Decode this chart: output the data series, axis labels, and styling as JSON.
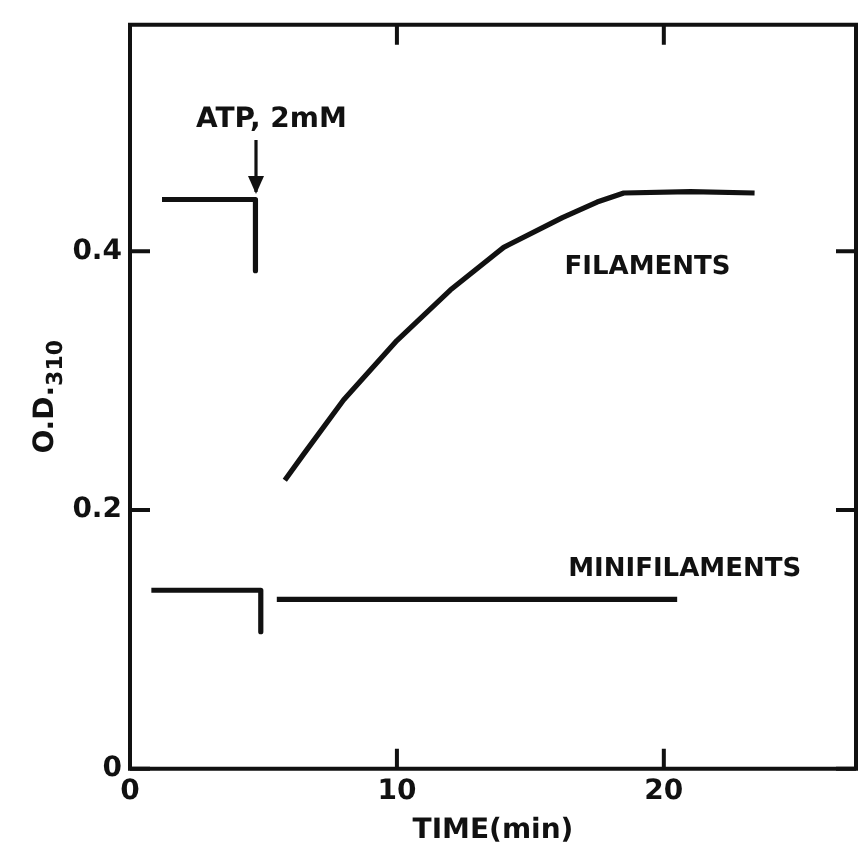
{
  "chart_data": {
    "type": "line",
    "xlabel": "TIME(min)",
    "ylabel": "O.D.$_{310}$",
    "xlim": [
      0,
      27.2
    ],
    "ylim": [
      0,
      0.575
    ],
    "xticks": [
      0,
      10,
      20
    ],
    "yticks": [
      0,
      0.2,
      0.4
    ],
    "series": [
      {
        "name": "FILAMENTS",
        "color": "#111111",
        "x": [
          1.2,
          4.7,
          4.7,
          5.2,
          5.8,
          6.5,
          8,
          10,
          12,
          14,
          16.2,
          17.5,
          18.5,
          21,
          23.4
        ],
        "values": [
          0.44,
          0.44,
          0.385,
          null,
          0.223,
          0.243,
          0.285,
          0.331,
          0.37,
          0.403,
          0.426,
          0.438,
          0.445,
          0.446,
          0.445
        ]
      },
      {
        "name": "MINIFILAMENTS",
        "color": "#111111",
        "x": [
          0.8,
          4.9,
          4.9,
          5.2,
          5.5,
          20.5
        ],
        "values": [
          0.138,
          0.138,
          0.106,
          null,
          0.131,
          0.131
        ]
      }
    ],
    "annotations": [
      "ATP, 2mM"
    ],
    "grid": false,
    "legend": false,
    "marker": "none",
    "line_style": "solid"
  }
}
